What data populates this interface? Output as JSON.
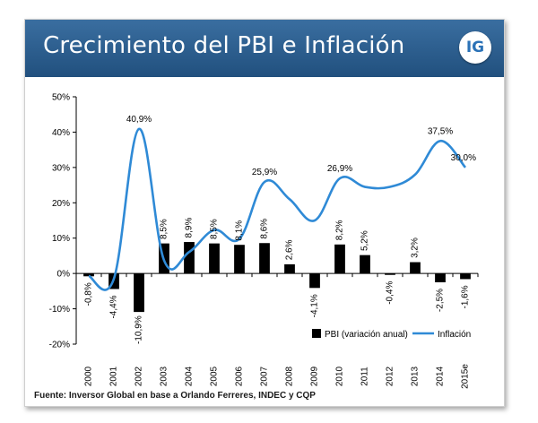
{
  "header": {
    "title": "Crecimiento del PBI e Inflación",
    "logo_text": "IG",
    "banner_color": "#2c5f8f"
  },
  "source_note": "Fuente: Inversor Global en base a Orlando Ferreres, INDEC y CQP",
  "chart_data": {
    "type": "bar+line",
    "categories": [
      "2000",
      "2001",
      "2002",
      "2003",
      "2004",
      "2005",
      "2006",
      "2007",
      "2008",
      "2009",
      "2010",
      "2011",
      "2012",
      "2013",
      "2014",
      "2015e"
    ],
    "series": [
      {
        "name": "PBI (variación anual)",
        "type": "bar",
        "color": "#000000",
        "values": [
          -0.8,
          -4.4,
          -10.9,
          8.5,
          8.9,
          8.5,
          8.1,
          8.6,
          2.6,
          -4.1,
          8.2,
          5.2,
          -0.4,
          3.2,
          -2.5,
          -1.6
        ],
        "labels": [
          "-0,8%",
          "-4,4%",
          "-10,9%",
          "8,5%",
          "8,9%",
          "8,5%",
          "8,1%",
          "8,6%",
          "2,6%",
          "-4,1%",
          "8,2%",
          "5,2%",
          "-0,4%",
          "3,2%",
          "-2,5%",
          "-1,6%"
        ]
      },
      {
        "name": "Inflación",
        "type": "line",
        "color": "#2f8ad6",
        "values": [
          -0.7,
          -1.5,
          40.9,
          3.7,
          6.1,
          12.3,
          9.8,
          25.9,
          21.0,
          15.0,
          26.9,
          24.5,
          24.5,
          28.0,
          37.5,
          30.0
        ],
        "annotations": [
          {
            "index": 2,
            "text": "40,9%"
          },
          {
            "index": 7,
            "text": "25,9%"
          },
          {
            "index": 10,
            "text": "26,9%"
          },
          {
            "index": 14,
            "text": "37,5%"
          },
          {
            "index": 15,
            "text": "30,0%"
          }
        ]
      }
    ],
    "y_ticks": [
      "50%",
      "40%",
      "30%",
      "20%",
      "10%",
      "0%",
      "-10%",
      "-20%"
    ],
    "y_tick_values": [
      50,
      40,
      30,
      20,
      10,
      0,
      -10,
      -20
    ],
    "ylim": [
      -20,
      50
    ],
    "grid": false,
    "legend_position": "bottom-right"
  }
}
